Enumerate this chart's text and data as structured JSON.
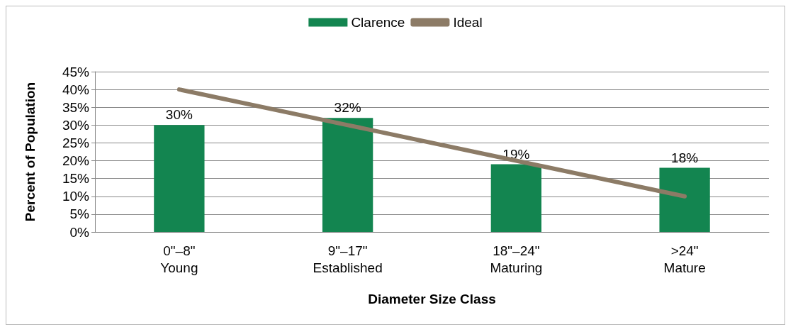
{
  "chart_data": {
    "type": "bar",
    "xlabel": "Diameter Size Class",
    "ylabel": "Percent of Population",
    "categories": [
      "0\"–8\"\nYoung",
      "9\"–17\"\nEstablished",
      "18\"–24\"\nMaturing",
      ">24\"\nMature"
    ],
    "series": [
      {
        "name": "Clarence",
        "color": "#138550",
        "values": [
          30,
          32,
          19,
          18
        ],
        "value_labels": [
          "30%",
          "32%",
          "19%",
          "18%"
        ]
      },
      {
        "name": "Ideal",
        "type": "line",
        "color": "#8c7b66",
        "values": [
          40,
          30,
          20,
          10
        ],
        "marker": "none"
      }
    ],
    "ylim": [
      0,
      45
    ],
    "yticks": [
      {
        "value": 0,
        "label": "0%"
      },
      {
        "value": 5,
        "label": "5%"
      },
      {
        "value": 10,
        "label": "10%"
      },
      {
        "value": 15,
        "label": "15%"
      },
      {
        "value": 20,
        "label": "20%"
      },
      {
        "value": 25,
        "label": "25%"
      },
      {
        "value": 30,
        "label": "30%"
      },
      {
        "value": 35,
        "label": "35%"
      },
      {
        "value": 40,
        "label": "40%"
      },
      {
        "value": 45,
        "label": "45%"
      }
    ],
    "grid": "y",
    "legend": "top"
  }
}
